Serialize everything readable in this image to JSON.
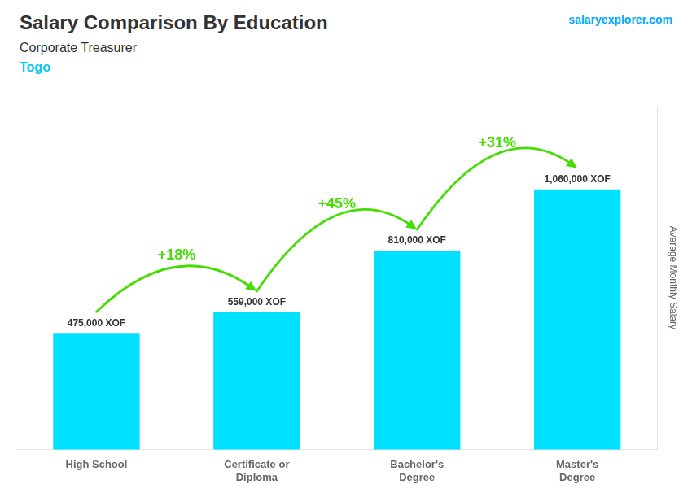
{
  "chart_data": {
    "type": "bar",
    "title": "Salary Comparison By Education",
    "subtitle": "Corporate Treasurer",
    "ylabel": "Average Monthly Salary",
    "categories": [
      "High School",
      "Certificate or\nDiploma",
      "Bachelor's\nDegree",
      "Master's\nDegree"
    ],
    "values": [
      475000,
      559000,
      810000,
      1060000
    ],
    "value_labels": [
      "475,000 XOF",
      "559,000 XOF",
      "810,000 XOF",
      "1,060,000 XOF"
    ],
    "data_labels": true,
    "color": "#00e0ff",
    "ylim": [
      0,
      1400000
    ],
    "grid": false,
    "tick_labels": "x",
    "annotations": [
      {
        "text": "Togo",
        "color": "#00ccee"
      },
      {
        "text": "salaryexplorer.com",
        "color": "#00aaff"
      },
      {
        "text": "+18%",
        "from": "High School",
        "to": "Certificate or\nDiploma",
        "color": "#44dd00"
      },
      {
        "text": "+45%",
        "from": "Certificate or\nDiploma",
        "to": "Bachelor's\nDegree",
        "color": "#44dd00"
      },
      {
        "text": "+31%",
        "from": "Bachelor's\nDegree",
        "to": "Master's\nDegree",
        "color": "#44dd00"
      }
    ]
  }
}
